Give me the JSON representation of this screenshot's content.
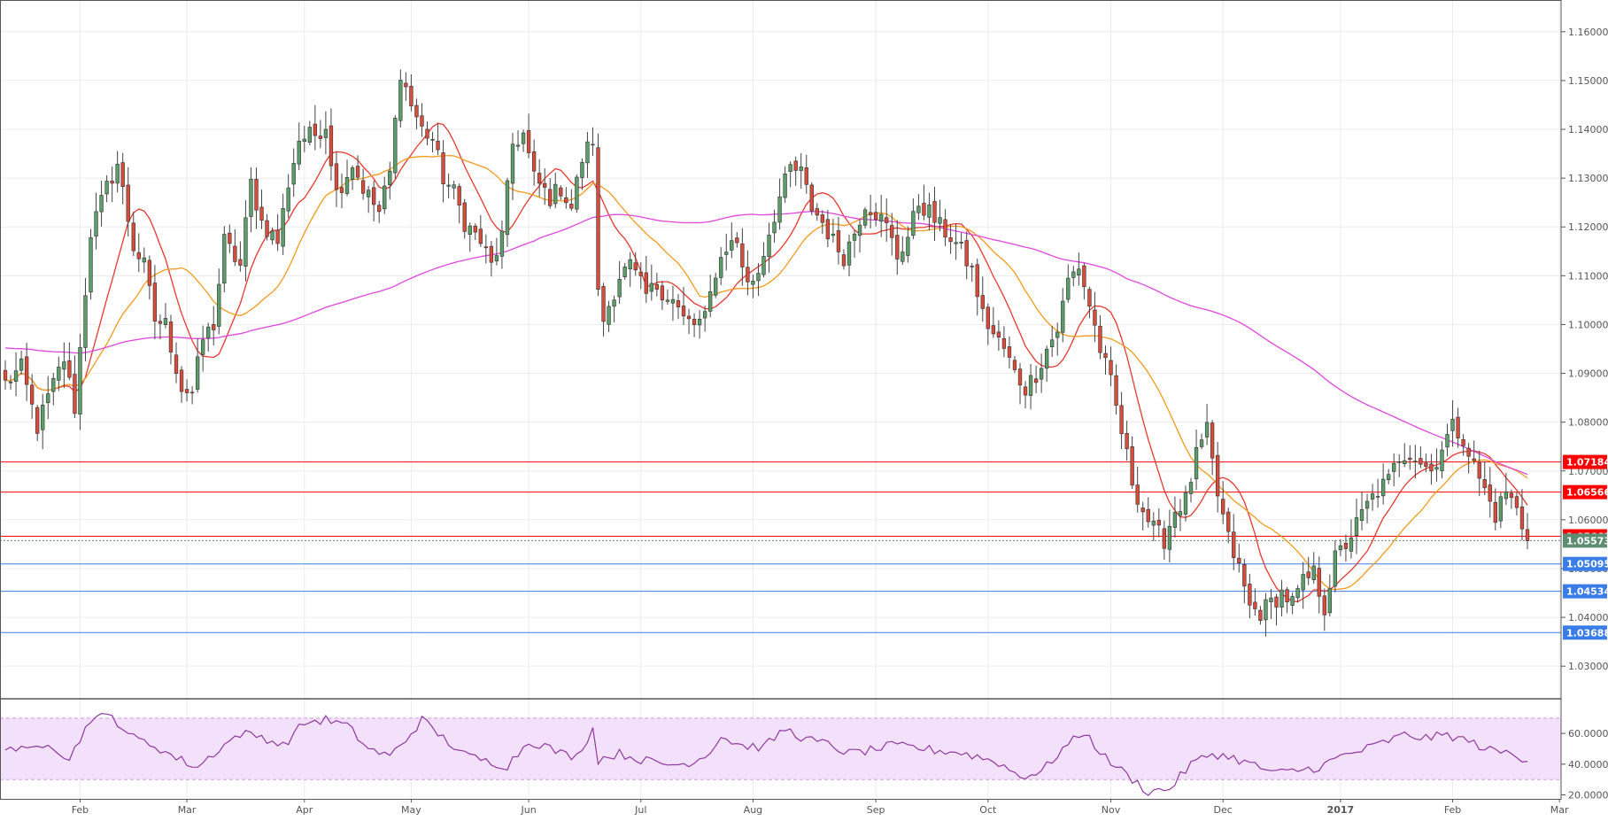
{
  "chart_data": {
    "type": "candlestick",
    "price_axis": {
      "ylim": [
        1.0235,
        1.1665
      ],
      "ticks": [
        "1.16000",
        "1.15000",
        "1.14000",
        "1.13000",
        "1.12000",
        "1.11000",
        "1.10000",
        "1.09000",
        "1.08000",
        "1.07000",
        "1.06000",
        "1.05000",
        "1.04000",
        "1.03000"
      ]
    },
    "x_axis": {
      "labels": [
        {
          "text": "Feb",
          "idx": 14
        },
        {
          "text": "Mar",
          "idx": 34
        },
        {
          "text": "Apr",
          "idx": 56
        },
        {
          "text": "May",
          "idx": 76
        },
        {
          "text": "Jun",
          "idx": 98
        },
        {
          "text": "Jul",
          "idx": 119
        },
        {
          "text": "Aug",
          "idx": 140
        },
        {
          "text": "Sep",
          "idx": 163
        },
        {
          "text": "Oct",
          "idx": 184
        },
        {
          "text": "Nov",
          "idx": 207
        },
        {
          "text": "Dec",
          "idx": 228
        },
        {
          "text": "2017",
          "idx": 250
        },
        {
          "text": "Feb",
          "idx": 271
        },
        {
          "text": "Mar",
          "idx": 291
        }
      ]
    },
    "candle_count": 286,
    "candle_anchors": [
      [
        0,
        1.088
      ],
      [
        3,
        1.091
      ],
      [
        6,
        1.079
      ],
      [
        8,
        1.085
      ],
      [
        11,
        1.093
      ],
      [
        13,
        1.083
      ],
      [
        16,
        1.119
      ],
      [
        19,
        1.128
      ],
      [
        21,
        1.133
      ],
      [
        24,
        1.116
      ],
      [
        26,
        1.112
      ],
      [
        28,
        1.101
      ],
      [
        30,
        1.1
      ],
      [
        33,
        1.087
      ],
      [
        35,
        1.086
      ],
      [
        37,
        1.097
      ],
      [
        39,
        1.1
      ],
      [
        41,
        1.117
      ],
      [
        44,
        1.112
      ],
      [
        46,
        1.129
      ],
      [
        48,
        1.121
      ],
      [
        51,
        1.117
      ],
      [
        53,
        1.129
      ],
      [
        55,
        1.138
      ],
      [
        58,
        1.139
      ],
      [
        60,
        1.141
      ],
      [
        62,
        1.127
      ],
      [
        65,
        1.133
      ],
      [
        67,
        1.128
      ],
      [
        70,
        1.123
      ],
      [
        72,
        1.131
      ],
      [
        74,
        1.152
      ],
      [
        76,
        1.145
      ],
      [
        78,
        1.14
      ],
      [
        80,
        1.138
      ],
      [
        82,
        1.13
      ],
      [
        84,
        1.127
      ],
      [
        86,
        1.121
      ],
      [
        89,
        1.117
      ],
      [
        91,
        1.112
      ],
      [
        93,
        1.118
      ],
      [
        95,
        1.137
      ],
      [
        97,
        1.139
      ],
      [
        99,
        1.13
      ],
      [
        102,
        1.126
      ],
      [
        104,
        1.128
      ],
      [
        106,
        1.124
      ],
      [
        108,
        1.134
      ],
      [
        110,
        1.138
      ],
      [
        111,
        1.106
      ],
      [
        112,
        1.101
      ],
      [
        115,
        1.11
      ],
      [
        117,
        1.112
      ],
      [
        120,
        1.106
      ],
      [
        122,
        1.108
      ],
      [
        125,
        1.105
      ],
      [
        127,
        1.101
      ],
      [
        129,
        1.1
      ],
      [
        131,
        1.101
      ],
      [
        133,
        1.111
      ],
      [
        135,
        1.116
      ],
      [
        137,
        1.117
      ],
      [
        139,
        1.108
      ],
      [
        141,
        1.111
      ],
      [
        143,
        1.119
      ],
      [
        145,
        1.126
      ],
      [
        147,
        1.132
      ],
      [
        149,
        1.131
      ],
      [
        151,
        1.124
      ],
      [
        153,
        1.121
      ],
      [
        155,
        1.117
      ],
      [
        157,
        1.114
      ],
      [
        159,
        1.119
      ],
      [
        161,
        1.125
      ],
      [
        163,
        1.123
      ],
      [
        165,
        1.12
      ],
      [
        167,
        1.114
      ],
      [
        169,
        1.118
      ],
      [
        171,
        1.125
      ],
      [
        173,
        1.123
      ],
      [
        175,
        1.12
      ],
      [
        177,
        1.118
      ],
      [
        179,
        1.115
      ],
      [
        181,
        1.111
      ],
      [
        183,
        1.102
      ],
      [
        185,
        1.098
      ],
      [
        187,
        1.095
      ],
      [
        189,
        1.09
      ],
      [
        191,
        1.087
      ],
      [
        193,
        1.09
      ],
      [
        195,
        1.095
      ],
      [
        197,
        1.099
      ],
      [
        199,
        1.109
      ],
      [
        201,
        1.112
      ],
      [
        203,
        1.104
      ],
      [
        205,
        1.095
      ],
      [
        207,
        1.088
      ],
      [
        209,
        1.078
      ],
      [
        211,
        1.068
      ],
      [
        213,
        1.062
      ],
      [
        215,
        1.058
      ],
      [
        217,
        1.056
      ],
      [
        219,
        1.062
      ],
      [
        221,
        1.064
      ],
      [
        223,
        1.073
      ],
      [
        225,
        1.078
      ],
      [
        227,
        1.065
      ],
      [
        229,
        1.056
      ],
      [
        231,
        1.05
      ],
      [
        233,
        1.042
      ],
      [
        235,
        1.041
      ],
      [
        237,
        1.043
      ],
      [
        239,
        1.045
      ],
      [
        241,
        1.043
      ],
      [
        243,
        1.047
      ],
      [
        245,
        1.049
      ],
      [
        247,
        1.042
      ],
      [
        249,
        1.052
      ],
      [
        251,
        1.055
      ],
      [
        253,
        1.059
      ],
      [
        255,
        1.063
      ],
      [
        257,
        1.066
      ],
      [
        259,
        1.068
      ],
      [
        261,
        1.073
      ],
      [
        263,
        1.074
      ],
      [
        265,
        1.072
      ],
      [
        267,
        1.07
      ],
      [
        269,
        1.075
      ],
      [
        271,
        1.079
      ],
      [
        273,
        1.077
      ],
      [
        275,
        1.071
      ],
      [
        277,
        1.066
      ],
      [
        279,
        1.061
      ],
      [
        281,
        1.066
      ],
      [
        283,
        1.062
      ],
      [
        285,
        1.0557
      ]
    ],
    "moving_averages": [
      {
        "period": 10,
        "color": "#e8382f"
      },
      {
        "period": 20,
        "color": "#f39a1b"
      },
      {
        "period": 100,
        "color": "#e146dd"
      }
    ],
    "sma_long_start_value": 1.0952,
    "horizontal_levels": [
      {
        "value": 1.07184,
        "label": "1.07184",
        "color": "#ff0000",
        "style": "solid"
      },
      {
        "value": 1.06566,
        "label": "1.06566",
        "color": "#ff0000",
        "style": "solid"
      },
      {
        "value": 1.05662,
        "label": "1.05662",
        "color": "#ff0000",
        "style": "solid"
      },
      {
        "value": 1.05573,
        "label": "1.05573",
        "color": "#5e8d72",
        "style": "dotted"
      },
      {
        "value": 1.05095,
        "label": "1.05095",
        "color": "#3b7de8",
        "style": "solid"
      },
      {
        "value": 1.04534,
        "label": "1.04534",
        "color": "#3b7de8",
        "style": "solid"
      },
      {
        "value": 1.03688,
        "label": "1.03688",
        "color": "#3b7de8",
        "style": "solid"
      }
    ],
    "rsi": {
      "ylim": [
        18,
        82
      ],
      "ticks": [
        "60.0000",
        "40.0000",
        "20.0000"
      ],
      "upper_band": 70,
      "lower_band": 30,
      "band_color": "#f3e0fa",
      "line_color": "#8e3aa0",
      "anchors": [
        [
          0,
          52
        ],
        [
          4,
          48
        ],
        [
          8,
          55
        ],
        [
          12,
          43
        ],
        [
          16,
          70
        ],
        [
          20,
          71
        ],
        [
          24,
          57
        ],
        [
          28,
          52
        ],
        [
          32,
          44
        ],
        [
          36,
          38
        ],
        [
          40,
          50
        ],
        [
          44,
          60
        ],
        [
          48,
          58
        ],
        [
          52,
          52
        ],
        [
          56,
          67
        ],
        [
          60,
          69
        ],
        [
          64,
          65
        ],
        [
          68,
          50
        ],
        [
          72,
          45
        ],
        [
          76,
          60
        ],
        [
          78,
          69
        ],
        [
          82,
          57
        ],
        [
          86,
          46
        ],
        [
          90,
          42
        ],
        [
          94,
          39
        ],
        [
          98,
          55
        ],
        [
          101,
          52
        ],
        [
          104,
          47
        ],
        [
          107,
          45
        ],
        [
          110,
          63
        ],
        [
          111,
          43
        ],
        [
          115,
          47
        ],
        [
          119,
          43
        ],
        [
          123,
          40
        ],
        [
          127,
          40
        ],
        [
          131,
          45
        ],
        [
          134,
          58
        ],
        [
          138,
          52
        ],
        [
          142,
          51
        ],
        [
          146,
          63
        ],
        [
          150,
          56
        ],
        [
          154,
          53
        ],
        [
          158,
          47
        ],
        [
          162,
          49
        ],
        [
          166,
          52
        ],
        [
          170,
          51
        ],
        [
          174,
          49
        ],
        [
          178,
          48
        ],
        [
          182,
          45
        ],
        [
          186,
          41
        ],
        [
          190,
          32
        ],
        [
          194,
          35
        ],
        [
          198,
          50
        ],
        [
          202,
          61
        ],
        [
          206,
          44
        ],
        [
          210,
          33
        ],
        [
          214,
          22
        ],
        [
          218,
          24
        ],
        [
          222,
          40
        ],
        [
          226,
          47
        ],
        [
          230,
          44
        ],
        [
          234,
          39
        ],
        [
          238,
          34
        ],
        [
          242,
          36
        ],
        [
          246,
          38
        ],
        [
          250,
          45
        ],
        [
          254,
          49
        ],
        [
          258,
          54
        ],
        [
          262,
          59
        ],
        [
          266,
          57
        ],
        [
          270,
          59
        ],
        [
          274,
          55
        ],
        [
          278,
          49
        ],
        [
          282,
          47
        ],
        [
          285,
          43
        ]
      ]
    },
    "colors": {
      "up_fill": "#5b9e6a",
      "down_fill": "#d94b3a",
      "wick": "#444444",
      "grid": "#ececec",
      "axis_text": "#555555"
    }
  }
}
